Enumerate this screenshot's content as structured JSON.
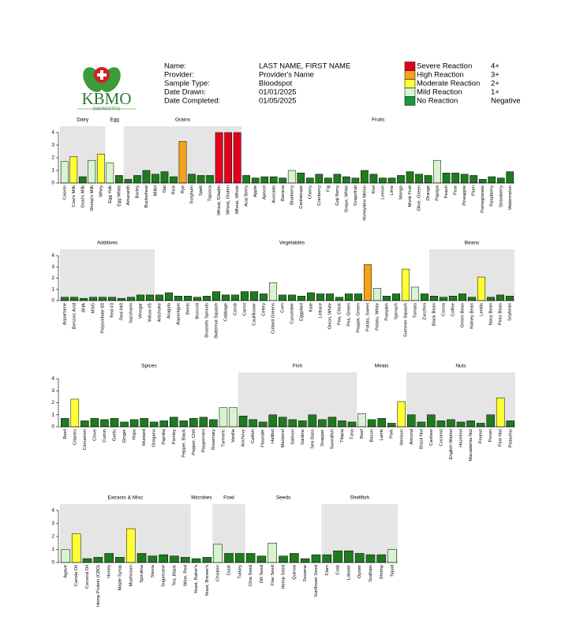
{
  "header": {
    "logo": "KBMO",
    "logo_sub": "DIAGNOSTICS",
    "fields": [
      {
        "label": "Name:",
        "value": "LAST NAME, FIRST NAME"
      },
      {
        "label": "Provider:",
        "value": "Provider's Name"
      },
      {
        "label": "Sample Type:",
        "value": "Bloodspot"
      },
      {
        "label": "Date Drawn:",
        "value": "01/01/2025"
      },
      {
        "label": "Date Completed:",
        "value": "01/05/2025"
      }
    ]
  },
  "legend": [
    {
      "label": "Severe Reaction",
      "level": "4+",
      "color": "#e3001b"
    },
    {
      "label": "High Reaction",
      "level": "3+",
      "color": "#f7a21b"
    },
    {
      "label": "Moderate Reaction",
      "level": "2+",
      "color": "#ffff33"
    },
    {
      "label": "Mild Reaction",
      "level": "1+",
      "color": "#d6f5cf"
    },
    {
      "label": "No Reaction",
      "level": "Negative",
      "color": "#1a9a3a"
    }
  ],
  "chart_data": [
    {
      "type": "bar",
      "ylim": [
        0,
        4
      ],
      "yticks": [
        0,
        1,
        2,
        3,
        4
      ],
      "groups": [
        {
          "name": "Dairy",
          "shaded": true,
          "categories": [
            "Casein",
            "Cow's Milk",
            "Goat's Milk",
            "Sheep's Milk",
            "Whey"
          ],
          "values": [
            1.7,
            2.1,
            0.5,
            1.8,
            2.3
          ],
          "colors": [
            "#d6f5cf",
            "#ffff33",
            "#1e7b1e",
            "#d6f5cf",
            "#ffff33"
          ]
        },
        {
          "name": "Egg",
          "shaded": false,
          "categories": [
            "Egg Yolk",
            "Egg White"
          ],
          "values": [
            1.6,
            0.6
          ],
          "colors": [
            "#d6f5cf",
            "#1e7b1e"
          ]
        },
        {
          "name": "Grains",
          "shaded": true,
          "categories": [
            "Amaranth",
            "Barley",
            "Buckwheat",
            "Millet",
            "Oat",
            "Rice",
            "Rye",
            "Sorghum",
            "Spelt",
            "Tapioca",
            "Wheat, Gliadin",
            "Wheat, Gluten",
            "Wheat, Whole"
          ],
          "values": [
            0.3,
            0.6,
            1.0,
            0.7,
            0.9,
            0.5,
            3.3,
            0.7,
            0.6,
            0.6,
            4,
            4,
            4
          ],
          "colors": [
            "#1e7b1e",
            "#1e7b1e",
            "#1e7b1e",
            "#1e7b1e",
            "#1e7b1e",
            "#1e7b1e",
            "#f7a21b",
            "#1e7b1e",
            "#1e7b1e",
            "#1e7b1e",
            "#e3001b",
            "#e3001b",
            "#e3001b"
          ]
        },
        {
          "name": "Fruits",
          "shaded": false,
          "categories": [
            "Acai Berry",
            "Apple",
            "Apricot",
            "Avocado",
            "Banana",
            "Blueberry",
            "Cantaloupe",
            "Cherry",
            "Cranberry",
            "Fig",
            "Goji Berry",
            "Grape, White",
            "Grapefruit",
            "Honeydew Melon",
            "Kiwi",
            "Lemon",
            "Lime",
            "Mango",
            "Monk Fruit",
            "Olive, Green",
            "Orange",
            "Papaya",
            "Peach",
            "Pear",
            "Pineapple",
            "Plum",
            "Pomegranate",
            "Raspberry",
            "Strawberry",
            "Watermelon"
          ],
          "values": [
            0.6,
            0.4,
            0.5,
            0.5,
            0.4,
            1.0,
            0.8,
            0.4,
            0.7,
            0.4,
            0.7,
            0.5,
            0.4,
            1.0,
            0.7,
            0.4,
            0.4,
            0.6,
            0.9,
            0.7,
            0.6,
            1.8,
            0.8,
            0.8,
            0.7,
            0.6,
            0.3,
            0.5,
            0.4,
            0.9
          ],
          "colors": [
            "#1e7b1e",
            "#1e7b1e",
            "#1e7b1e",
            "#1e7b1e",
            "#1e7b1e",
            "#d6f5cf",
            "#1e7b1e",
            "#1e7b1e",
            "#1e7b1e",
            "#1e7b1e",
            "#1e7b1e",
            "#1e7b1e",
            "#1e7b1e",
            "#1e7b1e",
            "#1e7b1e",
            "#1e7b1e",
            "#1e7b1e",
            "#1e7b1e",
            "#1e7b1e",
            "#1e7b1e",
            "#1e7b1e",
            "#d6f5cf",
            "#1e7b1e",
            "#1e7b1e",
            "#1e7b1e",
            "#1e7b1e",
            "#1e7b1e",
            "#1e7b1e",
            "#1e7b1e",
            "#1e7b1e"
          ]
        }
      ]
    },
    {
      "type": "bar",
      "ylim": [
        0,
        4
      ],
      "yticks": [
        0,
        1,
        2,
        3,
        4
      ],
      "groups": [
        {
          "name": "Additives",
          "shaded": true,
          "categories": [
            "Aspartame",
            "Benzoic Acid",
            "BHA",
            "MSG",
            "Polysorbate 80",
            "Red #3",
            "Red #40",
            "Saccharin",
            "Vinegar",
            "Yellow #5"
          ],
          "values": [
            0.3,
            0.3,
            0.2,
            0.3,
            0.3,
            0.3,
            0.2,
            0.3,
            0.5,
            0.5
          ],
          "colors": [
            "#1e7b1e",
            "#1e7b1e",
            "#1e7b1e",
            "#1e7b1e",
            "#1e7b1e",
            "#1e7b1e",
            "#1e7b1e",
            "#1e7b1e",
            "#1e7b1e",
            "#1e7b1e"
          ]
        },
        {
          "name": "Vegetables",
          "shaded": false,
          "categories": [
            "Artichoke",
            "Arugula",
            "Asparagus",
            "Beets",
            "Broccoli",
            "Brussels Sprouts",
            "Butternut Squash",
            "Cabbage",
            "Carob",
            "Carrot",
            "Cauliflower",
            "Celery",
            "Collard Greens",
            "Corn",
            "Cucumber",
            "Eggplant",
            "Kale",
            "Lettuce",
            "Onion, White",
            "Pea, Chick",
            "Pea, Green",
            "Pepper, Green",
            "Potato, Sweet",
            "Potato, White",
            "Pumpkin",
            "Spinach",
            "Summer Squash",
            "Tomato",
            "Zucchini"
          ],
          "values": [
            0.5,
            0.7,
            0.4,
            0.4,
            0.3,
            0.4,
            0.8,
            0.5,
            0.5,
            0.8,
            0.8,
            0.6,
            1.6,
            0.5,
            0.5,
            0.4,
            0.7,
            0.6,
            0.6,
            0.3,
            0.6,
            0.6,
            3.2,
            1.1,
            0.4,
            0.6,
            2.8,
            1.2,
            0.6
          ],
          "colors": [
            "#1e7b1e",
            "#1e7b1e",
            "#1e7b1e",
            "#1e7b1e",
            "#1e7b1e",
            "#1e7b1e",
            "#1e7b1e",
            "#1e7b1e",
            "#1e7b1e",
            "#1e7b1e",
            "#1e7b1e",
            "#1e7b1e",
            "#d6f5cf",
            "#1e7b1e",
            "#1e7b1e",
            "#1e7b1e",
            "#1e7b1e",
            "#1e7b1e",
            "#1e7b1e",
            "#1e7b1e",
            "#1e7b1e",
            "#1e7b1e",
            "#f7a21b",
            "#d6f5cf",
            "#1e7b1e",
            "#1e7b1e",
            "#ffff33",
            "#d6f5cf",
            "#1e7b1e"
          ]
        },
        {
          "name": "Beans",
          "shaded": true,
          "categories": [
            "Black Bean",
            "Cocoa",
            "Coffee",
            "Green Bean",
            "Kidney Bean",
            "Lentils",
            "Navy Bean",
            "Pinto Bean",
            "Soybean"
          ],
          "values": [
            0.4,
            0.3,
            0.4,
            0.6,
            0.3,
            2.1,
            0.3,
            0.5,
            0.4
          ],
          "colors": [
            "#1e7b1e",
            "#1e7b1e",
            "#1e7b1e",
            "#1e7b1e",
            "#1e7b1e",
            "#ffff33",
            "#1e7b1e",
            "#1e7b1e",
            "#1e7b1e"
          ]
        }
      ]
    },
    {
      "type": "bar",
      "ylim": [
        0,
        4
      ],
      "yticks": [
        0,
        1,
        2,
        3,
        4
      ],
      "groups": [
        {
          "name": "Spices",
          "shaded": false,
          "categories": [
            "Basil",
            "Cilantro",
            "Cinnamon",
            "Clove",
            "Cumin",
            "Garlic",
            "Ginger",
            "Hops",
            "Mustard",
            "Oregano",
            "Paprika",
            "Parsley",
            "Pepper, Black",
            "Pepper, Chili",
            "Peppermint",
            "Rosemary",
            "Turmeric",
            "Vanilla"
          ],
          "values": [
            0.7,
            2.3,
            0.5,
            0.7,
            0.6,
            0.7,
            0.4,
            0.6,
            0.7,
            0.4,
            0.5,
            0.8,
            0.5,
            0.7,
            0.8,
            0.6,
            1.6,
            1.6
          ],
          "colors": [
            "#1e7b1e",
            "#ffff33",
            "#1e7b1e",
            "#1e7b1e",
            "#1e7b1e",
            "#1e7b1e",
            "#1e7b1e",
            "#1e7b1e",
            "#1e7b1e",
            "#1e7b1e",
            "#1e7b1e",
            "#1e7b1e",
            "#1e7b1e",
            "#1e7b1e",
            "#1e7b1e",
            "#1e7b1e",
            "#d6f5cf",
            "#d6f5cf"
          ]
        },
        {
          "name": "Fish",
          "shaded": true,
          "categories": [
            "Anchovy",
            "Catfish",
            "Flounder",
            "Halibut",
            "Mackerel",
            "Salmon",
            "Sardine",
            "Sea Bass",
            "Snapper",
            "Swordfish",
            "Tilapia",
            "Tuna"
          ],
          "values": [
            0.9,
            0.6,
            0.4,
            1.0,
            0.8,
            0.6,
            0.5,
            1.0,
            0.6,
            0.8,
            0.5,
            0.4
          ],
          "colors": [
            "#1e7b1e",
            "#1e7b1e",
            "#1e7b1e",
            "#1e7b1e",
            "#1e7b1e",
            "#1e7b1e",
            "#1e7b1e",
            "#1e7b1e",
            "#1e7b1e",
            "#1e7b1e",
            "#1e7b1e",
            "#1e7b1e"
          ]
        },
        {
          "name": "Meats",
          "shaded": false,
          "categories": [
            "Beef",
            "Bacon",
            "Lamb",
            "Pork",
            "Venison"
          ],
          "values": [
            1.1,
            0.6,
            0.7,
            0.3,
            2.1
          ],
          "colors": [
            "#d6f5cf",
            "#1e7b1e",
            "#1e7b1e",
            "#1e7b1e",
            "#ffff33"
          ]
        },
        {
          "name": "Nuts",
          "shaded": true,
          "categories": [
            "Almond",
            "Brazil Nut",
            "Cashew",
            "Coconut",
            "English Walnut",
            "Hazelnut",
            "Macadamia Nut",
            "Peanut",
            "Pecan",
            "Pine Nut",
            "Pistachio"
          ],
          "values": [
            1.0,
            0.4,
            1.0,
            0.5,
            0.6,
            0.4,
            0.5,
            0.3,
            1.0,
            2.4,
            0.5
          ],
          "colors": [
            "#1e7b1e",
            "#1e7b1e",
            "#1e7b1e",
            "#1e7b1e",
            "#1e7b1e",
            "#1e7b1e",
            "#1e7b1e",
            "#1e7b1e",
            "#1e7b1e",
            "#ffff33",
            "#1e7b1e"
          ]
        }
      ]
    },
    {
      "type": "bar",
      "ylim": [
        0,
        4
      ],
      "yticks": [
        0,
        1,
        2,
        3,
        4
      ],
      "groups": [
        {
          "name": "Extracts & Misc",
          "shaded": true,
          "categories": [
            "Agave",
            "Canola Oil",
            "Coconut Oil",
            "Hemp Protein (CBD)",
            "Honey",
            "Maple Syrup",
            "Mushroom",
            "Spirulina",
            "Stevia",
            "Sugarcane",
            "Tea, Black",
            "Wine, Red"
          ],
          "values": [
            1.0,
            2.2,
            0.3,
            0.4,
            0.7,
            0.4,
            2.6,
            0.7,
            0.5,
            0.6,
            0.5,
            0.4
          ],
          "colors": [
            "#d6f5cf",
            "#ffff33",
            "#1e7b1e",
            "#1e7b1e",
            "#1e7b1e",
            "#1e7b1e",
            "#ffff33",
            "#1e7b1e",
            "#1e7b1e",
            "#1e7b1e",
            "#1e7b1e",
            "#1e7b1e"
          ]
        },
        {
          "name": "Microbes",
          "shaded": false,
          "categories": [
            "Yeast, Baker's",
            "Yeast, Brewer's"
          ],
          "values": [
            0.3,
            0.4
          ],
          "colors": [
            "#1e7b1e",
            "#1e7b1e"
          ]
        },
        {
          "name": "Fowl",
          "shaded": true,
          "categories": [
            "Chicken",
            "Duck",
            "Turkey"
          ],
          "values": [
            1.4,
            0.7,
            0.7
          ],
          "colors": [
            "#d6f5cf",
            "#1e7b1e",
            "#1e7b1e"
          ]
        },
        {
          "name": "Seeds",
          "shaded": false,
          "categories": [
            "Chia Seed",
            "Dill Seed",
            "Flax Seed",
            "Hemp Seed",
            "Quinoa",
            "Sesame",
            "Sunflower Seed"
          ],
          "values": [
            0.7,
            0.5,
            1.5,
            0.5,
            0.7,
            0.3,
            0.6
          ],
          "colors": [
            "#1e7b1e",
            "#1e7b1e",
            "#d6f5cf",
            "#1e7b1e",
            "#1e7b1e",
            "#1e7b1e",
            "#1e7b1e"
          ]
        },
        {
          "name": "Shellfish",
          "shaded": true,
          "categories": [
            "Clam",
            "Crab",
            "Lobster",
            "Oyster",
            "Scallops",
            "Shrimp",
            "Squid"
          ],
          "values": [
            0.6,
            0.9,
            0.9,
            0.7,
            0.6,
            0.6,
            1.0
          ],
          "colors": [
            "#1e7b1e",
            "#1e7b1e",
            "#1e7b1e",
            "#1e7b1e",
            "#1e7b1e",
            "#1e7b1e",
            "#d6f5cf"
          ]
        }
      ]
    }
  ]
}
